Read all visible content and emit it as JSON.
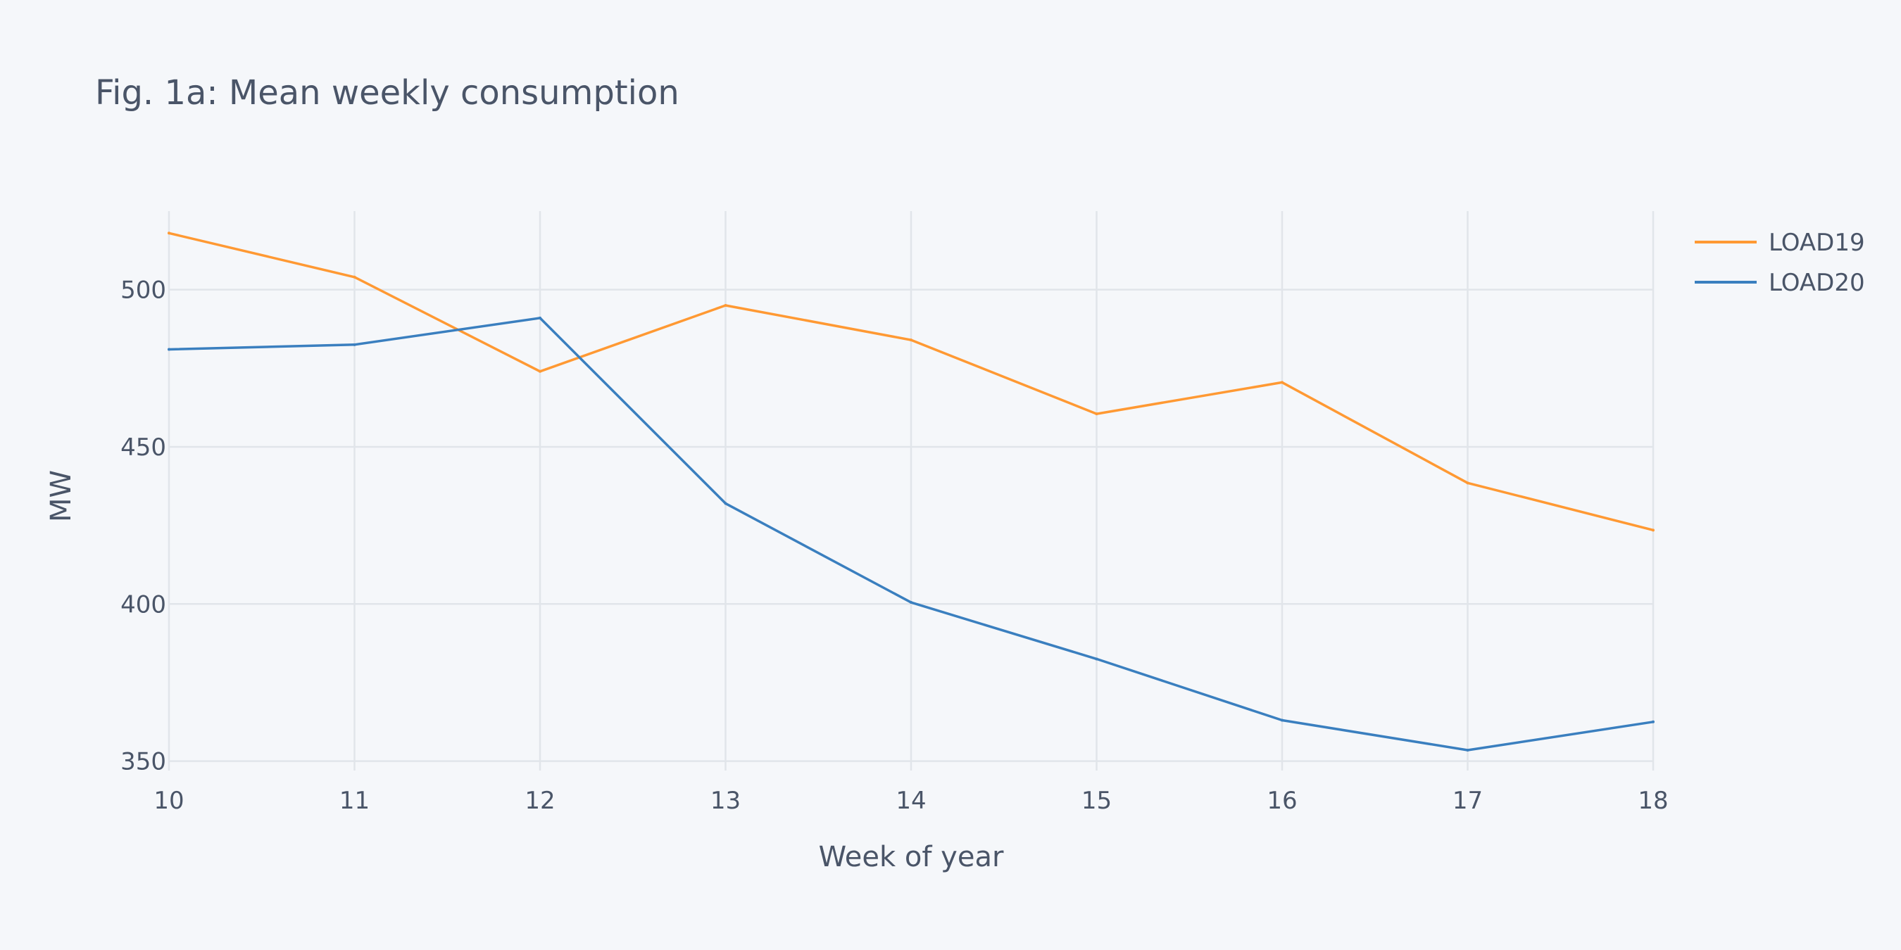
{
  "chart_data": {
    "type": "line",
    "title": "Fig. 1a: Mean weekly consumption",
    "xlabel": "Week of year",
    "ylabel": "MW",
    "x": [
      10,
      11,
      12,
      13,
      14,
      15,
      16,
      17,
      18
    ],
    "xlim": [
      10,
      18
    ],
    "ylim": [
      347,
      525
    ],
    "xticks": [
      10,
      11,
      12,
      13,
      14,
      15,
      16,
      17,
      18
    ],
    "yticks": [
      350,
      400,
      450,
      500
    ],
    "grid": true,
    "legend_position": "top-right",
    "series": [
      {
        "name": "LOAD19",
        "color": "#ff9933",
        "values": [
          518,
          504,
          474,
          495,
          484,
          460.5,
          470.5,
          438.5,
          423.5
        ]
      },
      {
        "name": "LOAD20",
        "color": "#3a7fbf",
        "values": [
          481,
          482.5,
          491,
          432,
          400.5,
          382.5,
          363,
          353.5,
          362.5
        ]
      }
    ]
  }
}
